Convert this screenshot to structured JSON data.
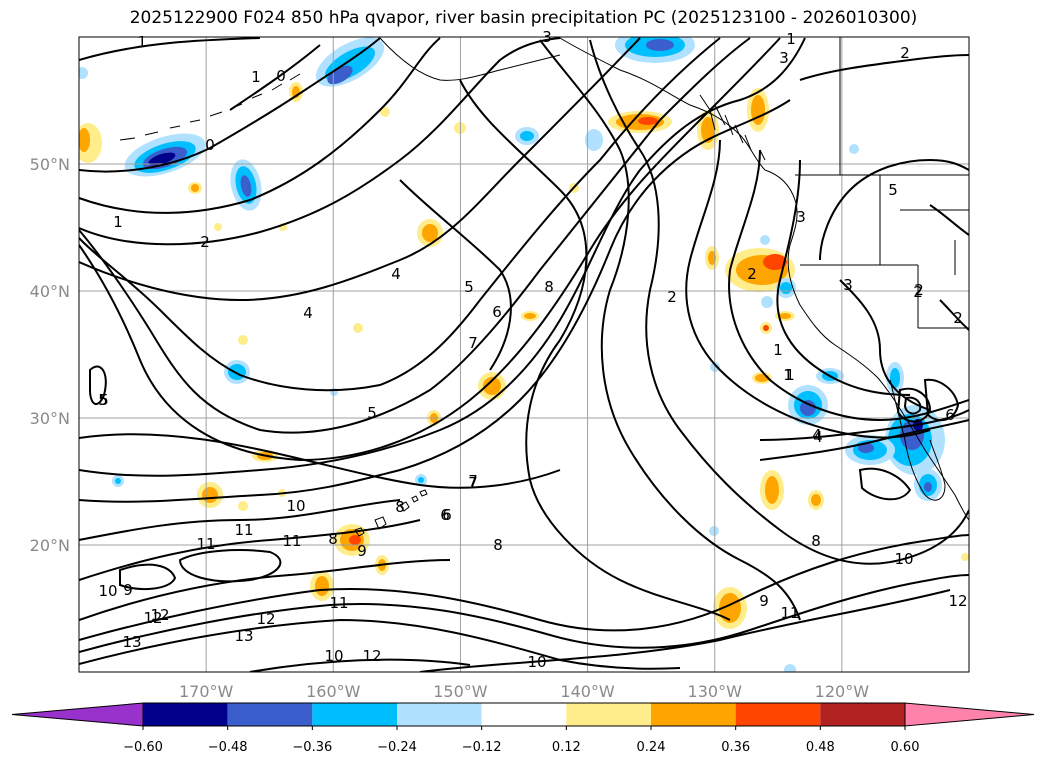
{
  "title": "2025122900 F024 850 hPa qvapor, river basin precipitation PC (2025123100 - 2026010300)",
  "map": {
    "lat_labels": [
      "50°N",
      "40°N",
      "30°N",
      "20°N"
    ],
    "lon_labels": [
      "170°W",
      "160°W",
      "150°W",
      "140°W",
      "130°W",
      "120°W"
    ],
    "lat_values": [
      50,
      40,
      30,
      20
    ],
    "lon_values": [
      -170,
      -160,
      -150,
      -140,
      -130,
      -120
    ],
    "lon_range": [
      -180,
      -110
    ],
    "lat_range": [
      10,
      60
    ],
    "contour_labels": [
      "1",
      "1",
      "0",
      "0",
      "1",
      "2",
      "3",
      "3",
      "1",
      "2",
      "2",
      "4",
      "4",
      "5",
      "6",
      "8",
      "7",
      "5",
      "5",
      "2",
      "2",
      "3",
      "2",
      "1",
      "1",
      "3",
      "4",
      "5",
      "6",
      "7",
      "9",
      "10",
      "11",
      "11",
      "11",
      "8",
      "9",
      "8",
      "8",
      "6",
      "7",
      "10",
      "10",
      "9",
      "11",
      "12",
      "12",
      "13",
      "13",
      "12",
      "10",
      "10",
      "11",
      "12",
      "12",
      "8",
      "4",
      "6",
      "2",
      "1",
      "5"
    ],
    "colors": {
      "coast": "#000000",
      "grid": "#a0a0a0",
      "contour": "#000000"
    }
  },
  "colorbar": {
    "bins": [
      {
        "color": "#9932cc"
      },
      {
        "color": "#00008b"
      },
      {
        "color": "#3a5fcd"
      },
      {
        "color": "#00bfff"
      },
      {
        "color": "#b0e2ff"
      },
      {
        "color": "#ffffff"
      },
      {
        "color": "#ffec8b"
      },
      {
        "color": "#ffa500"
      },
      {
        "color": "#ff4500"
      },
      {
        "color": "#b22222"
      },
      {
        "color": "#ff82ab"
      }
    ],
    "tick_labels": [
      "−0.60",
      "−0.48",
      "−0.36",
      "−0.24",
      "−0.12",
      "0.12",
      "0.24",
      "0.36",
      "0.48",
      "0.60"
    ]
  }
}
